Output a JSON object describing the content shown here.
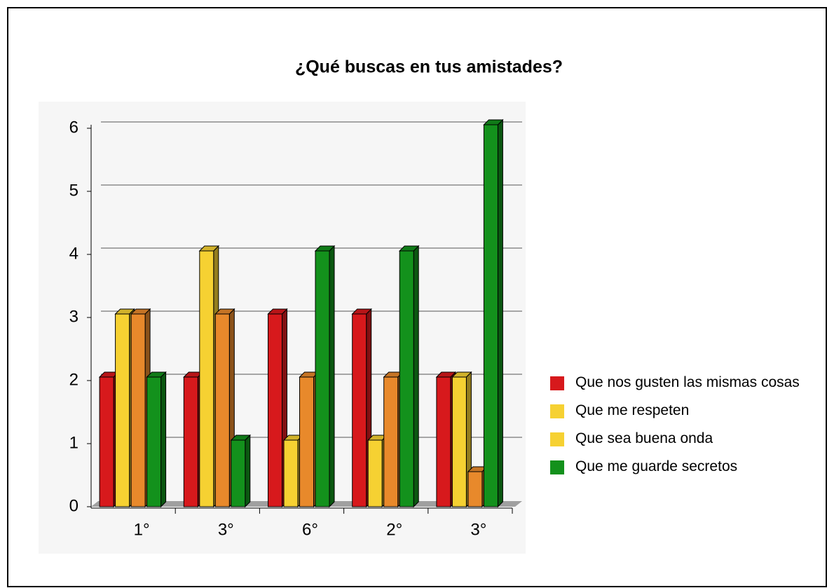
{
  "chart_data": {
    "type": "bar3d",
    "title": "¿Qué buscas en tus amistades?",
    "categories": [
      "1°",
      "3°",
      "6°",
      "2°",
      "3°"
    ],
    "series": [
      {
        "name": "Que nos gusten las mismas cosas",
        "color": "#d7191c",
        "legend_color": "#d7191c",
        "values": [
          2,
          2,
          3,
          3,
          2
        ]
      },
      {
        "name": "Que me respeten",
        "color": "#f6d132",
        "legend_color": "#f6d132",
        "values": [
          3,
          4,
          1,
          1,
          2
        ]
      },
      {
        "name": "Que sea buena onda",
        "color": "#e8892b",
        "legend_color": "#f6d132",
        "values": [
          3,
          3,
          2,
          2,
          0.5
        ]
      },
      {
        "name": "Que me guarde secretos",
        "color": "#13911c",
        "legend_color": "#13911c",
        "values": [
          2,
          1,
          4,
          4,
          6
        ]
      }
    ],
    "ylim": [
      0,
      6
    ],
    "yticks": [
      0,
      1,
      2,
      3,
      4,
      5,
      6
    ],
    "grid": true,
    "legend": "right"
  }
}
